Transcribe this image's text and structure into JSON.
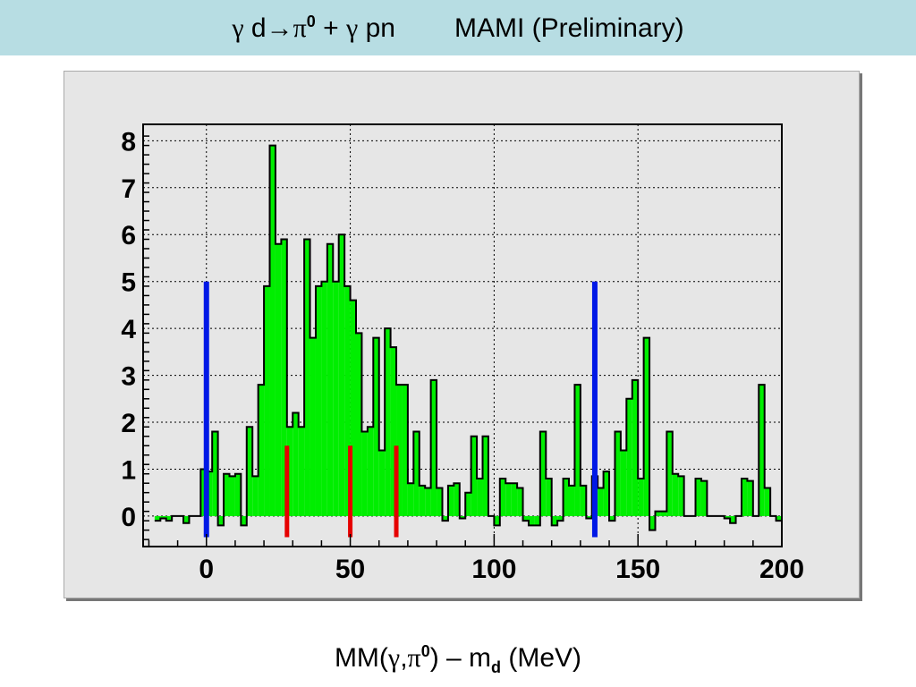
{
  "header": {
    "reaction_gamma1": "γ",
    "reaction_d": " d",
    "reaction_arrow": "→",
    "reaction_pi": "π",
    "reaction_pi_charge": "0",
    "reaction_plus": " + ",
    "reaction_gamma2": "γ",
    "reaction_pn": " pn",
    "experiment": "MAMI (Preliminary)"
  },
  "axis_title": {
    "mm_prefix": "MM(",
    "gamma": "γ",
    "comma": ",",
    "pi": "π",
    "pi_charge": "0",
    "close": ") – m",
    "md_sub": "d",
    "units": "  (MeV)"
  },
  "colors": {
    "header_bg": "#b7dde3",
    "frame_bg": "#e6e6e6",
    "histogram_fill": "#00ee00",
    "histogram_line": "#000000",
    "blue_marker": "#0018e6",
    "red_marker": "#e60000"
  },
  "chart_data": {
    "type": "histogram",
    "title": "",
    "xlabel": "MM(γ,π0) – md (MeV)",
    "ylabel": "",
    "xlim": [
      -22,
      200
    ],
    "ylim": [
      -0.65,
      8.35
    ],
    "grid": true,
    "bin_width": 2,
    "bin_start": -18,
    "x_ticks": [
      0,
      50,
      100,
      150,
      200
    ],
    "x_tick_labels": [
      "0",
      "50",
      "100",
      "150",
      "200"
    ],
    "y_ticks": [
      0,
      1,
      2,
      3,
      4,
      5,
      6,
      7,
      8
    ],
    "y_tick_labels": [
      "0",
      "1",
      "2",
      "3",
      "4",
      "5",
      "6",
      "7",
      "8"
    ],
    "values": [
      -0.1,
      -0.05,
      -0.1,
      0.0,
      0.0,
      -0.15,
      0.0,
      0.0,
      1.0,
      0.95,
      1.8,
      -0.2,
      0.9,
      0.85,
      0.9,
      -0.2,
      1.9,
      0.85,
      2.8,
      4.9,
      7.9,
      5.8,
      5.9,
      1.9,
      2.2,
      1.9,
      5.9,
      3.8,
      4.9,
      5.0,
      5.8,
      5.0,
      6.0,
      4.9,
      4.6,
      3.9,
      1.8,
      1.9,
      3.8,
      1.4,
      4.0,
      3.6,
      2.8,
      2.8,
      0.7,
      1.8,
      0.65,
      0.6,
      2.9,
      0.6,
      -0.1,
      0.65,
      0.7,
      -0.05,
      0.5,
      1.7,
      0.8,
      1.7,
      0.0,
      -0.2,
      0.8,
      0.7,
      0.7,
      0.6,
      -0.1,
      -0.2,
      -0.2,
      1.8,
      0.8,
      -0.2,
      -0.1,
      0.8,
      0.65,
      2.8,
      0.65,
      -0.05,
      0.85,
      0.6,
      0.95,
      -0.1,
      1.8,
      1.4,
      2.5,
      2.9,
      0.8,
      3.8,
      -0.3,
      0.1,
      0.1,
      1.8,
      0.9,
      0.85,
      0.0,
      0.0,
      0.8,
      0.75,
      0.0,
      0.0,
      0.0,
      -0.05,
      -0.15,
      0.0,
      0.8,
      0.75,
      0.0,
      2.8,
      0.6,
      0.0,
      -0.1
    ],
    "markers": [
      {
        "x": 0,
        "y_bottom": -0.45,
        "y_top": 5.0,
        "color": "blue"
      },
      {
        "x": 135,
        "y_bottom": -0.45,
        "y_top": 5.0,
        "color": "blue"
      },
      {
        "x": 28,
        "y_bottom": -0.45,
        "y_top": 1.5,
        "color": "red"
      },
      {
        "x": 50,
        "y_bottom": -0.45,
        "y_top": 1.5,
        "color": "red"
      },
      {
        "x": 66,
        "y_bottom": -0.45,
        "y_top": 1.5,
        "color": "red"
      }
    ]
  }
}
